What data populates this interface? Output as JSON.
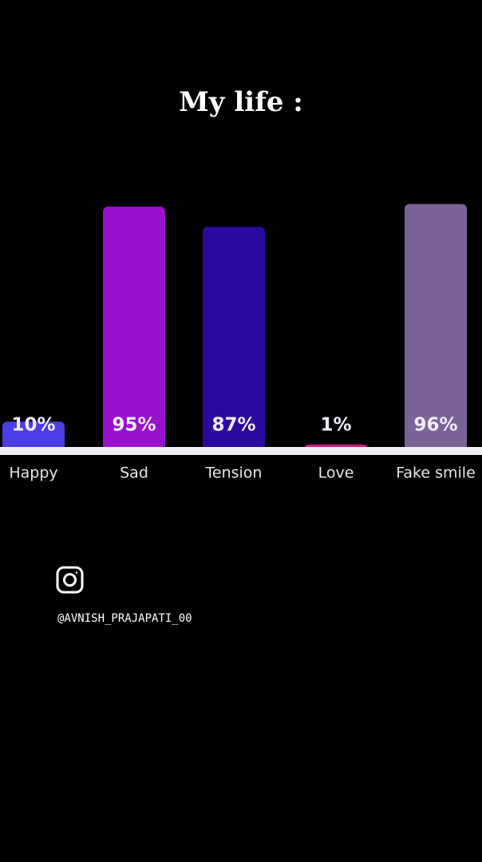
{
  "chart_data": {
    "type": "bar",
    "title": "My life :",
    "categories": [
      "Happy",
      "Sad",
      "Tension",
      "Love",
      "Fake smile"
    ],
    "values": [
      10,
      95,
      87,
      1,
      96
    ],
    "value_labels": [
      "10%",
      "95%",
      "87%",
      "1%",
      "96%"
    ],
    "colors": [
      "#4b3ee6",
      "#9a10cc",
      "#2a0a9e",
      "#d21a84",
      "#7b6299"
    ]
  },
  "watermark": {
    "handle": "@AVNISH_PRAJAPATI_00"
  }
}
